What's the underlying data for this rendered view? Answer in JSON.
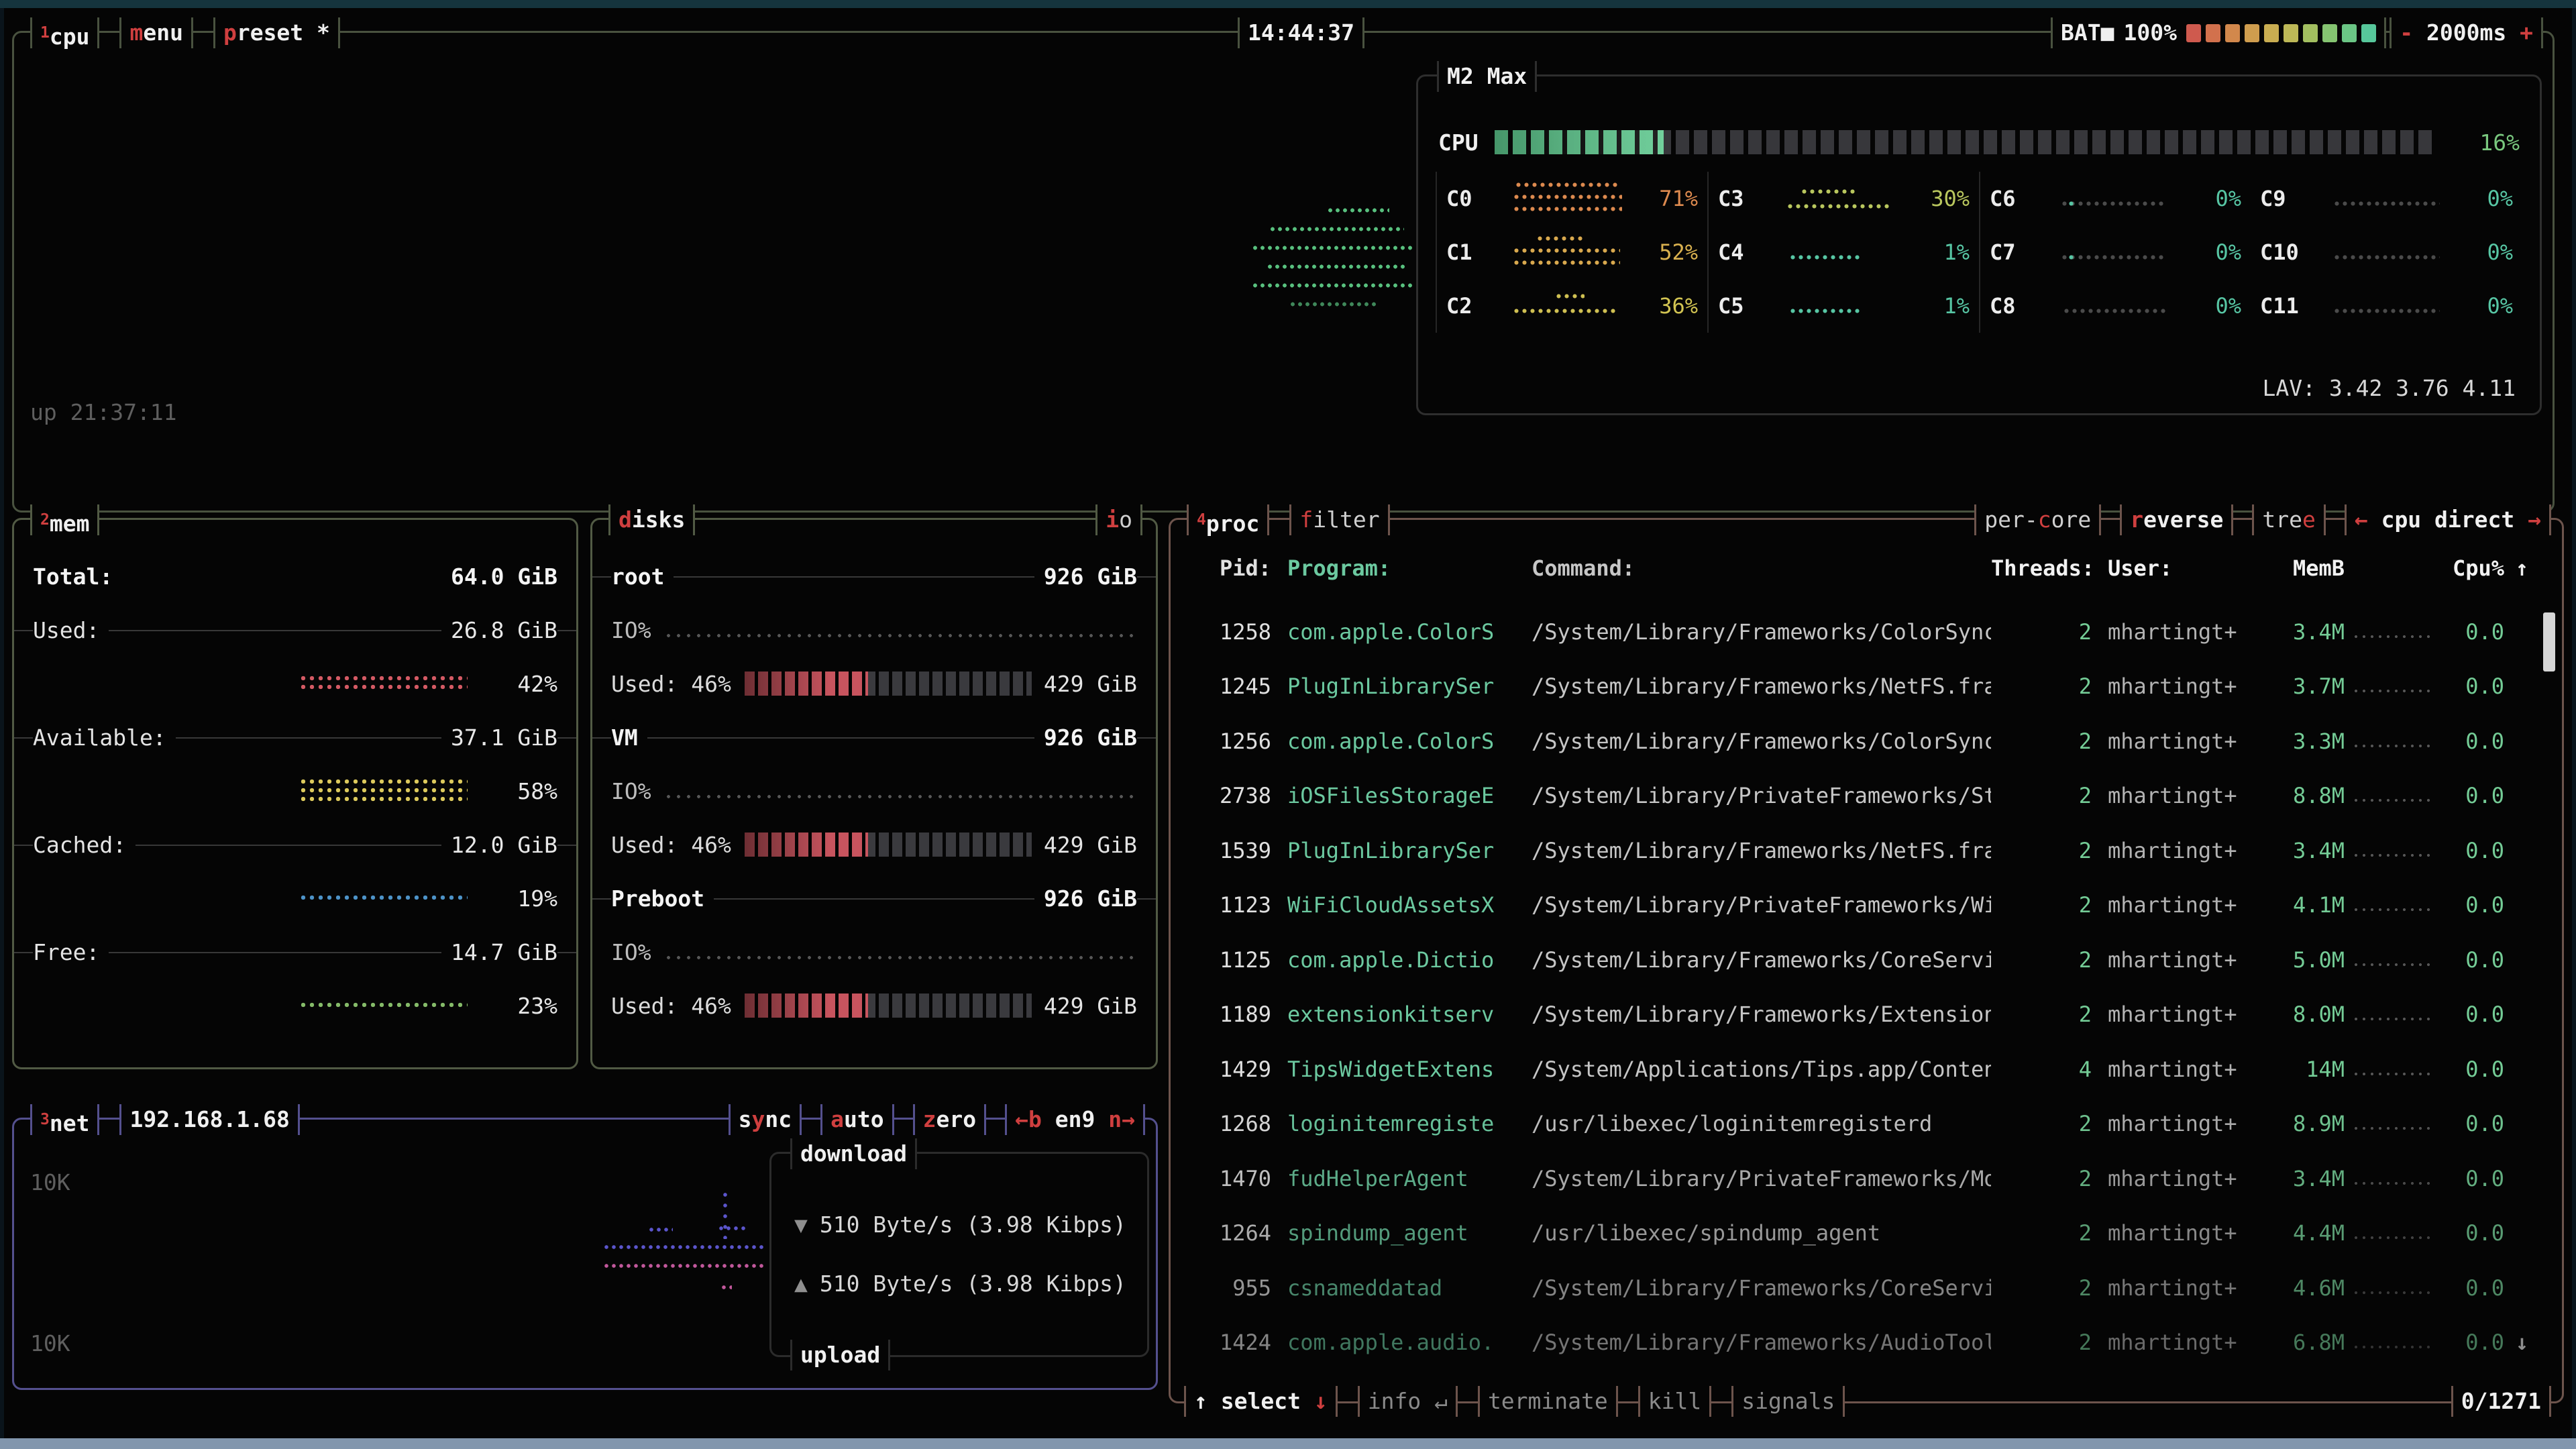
{
  "topbar": {
    "tabs": [
      {
        "sup": "1",
        "label": "cpu"
      },
      {
        "hot": "m",
        "rest": "enu"
      },
      {
        "hot": "p",
        "rest": "reset *"
      }
    ],
    "clock": "14:44:37",
    "battery": {
      "label": "BAT",
      "icon": "■",
      "percent": "100%",
      "blocks": [
        "#cf5a4e",
        "#d2714d",
        "#d2884c",
        "#cf9d4e",
        "#c9ad51",
        "#bdb857",
        "#a3bf60",
        "#85c471",
        "#6bc685",
        "#57c79b"
      ]
    },
    "interval": {
      "minus": "-",
      "value": "2000ms",
      "plus": "+"
    }
  },
  "cpu": {
    "uptime": "up 21:37:11",
    "model": "M2 Max",
    "total_label": "CPU",
    "total_percent": "16%",
    "percent_color": "#79c77e",
    "filled": 9,
    "blocks": 50,
    "graph_color": "#58c07e",
    "lav": "LAV: 3.42 3.76 4.11",
    "cores": [
      {
        "name": "C0",
        "pct": "71%",
        "color": "#dd8a4f",
        "gcolor": "#dd8a4f",
        "graph": "g3"
      },
      {
        "name": "C3",
        "pct": "30%",
        "color": "#b9c75e",
        "gcolor": "#b9c75e",
        "graph": "g2mid"
      },
      {
        "name": "C6",
        "pct": "0%",
        "color": "#57c6a4",
        "gcolor": "#4b4b4b",
        "graph": "gspeck"
      },
      {
        "name": "C9",
        "pct": "0%",
        "color": "#57c6a4",
        "gcolor": "#4b4b4b",
        "graph": "gflat"
      },
      {
        "name": "C1",
        "pct": "52%",
        "color": "#d9b14f",
        "gcolor": "#d9a94e",
        "graph": "g3top"
      },
      {
        "name": "C4",
        "pct": "1%",
        "color": "#57c6a4",
        "gcolor": "#57c6a4",
        "graph": "gsparse"
      },
      {
        "name": "C7",
        "pct": "0%",
        "color": "#57c6a4",
        "gcolor": "#4b4b4b",
        "graph": "gspeck"
      },
      {
        "name": "C10",
        "pct": "0%",
        "color": "#57c6a4",
        "gcolor": "#4b4b4b",
        "graph": "gflat"
      },
      {
        "name": "C2",
        "pct": "36%",
        "color": "#d2c452",
        "gcolor": "#cfc052",
        "graph": "g2sparse"
      },
      {
        "name": "C5",
        "pct": "1%",
        "color": "#57c6a4",
        "gcolor": "#57c6a4",
        "graph": "gsparse"
      },
      {
        "name": "C8",
        "pct": "0%",
        "color": "#57c6a4",
        "gcolor": "#4b4b4b",
        "graph": "gflat"
      },
      {
        "name": "C11",
        "pct": "0%",
        "color": "#57c6a4",
        "gcolor": "#4b4b4b",
        "graph": "gflat"
      }
    ]
  },
  "mem": {
    "sup": "2",
    "title": "mem",
    "total": {
      "label": "Total:",
      "value": "64.0 GiB"
    },
    "rows": [
      {
        "label": "Used:",
        "value": "26.8 GiB",
        "pct": "42%",
        "color": "#d45a64",
        "lines": "l2"
      },
      {
        "label": "Available:",
        "value": "37.1 GiB",
        "pct": "58%",
        "color": "#dcc95c",
        "lines": "l3"
      },
      {
        "label": "Cached:",
        "value": "12.0 GiB",
        "pct": "19%",
        "color": "#4d93c8",
        "lines": "l1"
      },
      {
        "label": "Free:",
        "value": "14.7 GiB",
        "pct": "23%",
        "color": "#85bb69",
        "lines": "l1"
      }
    ]
  },
  "disks": {
    "hot": "d",
    "rest": "isks",
    "io_hot": "i",
    "io_rest": "o",
    "entries": [
      {
        "name": "root",
        "size": "926 GiB",
        "io_label": "IO%",
        "used_label": "Used: 46%",
        "used_value": "429 GiB",
        "fill": 0.43
      },
      {
        "name": "VM",
        "size": "926 GiB",
        "io_label": "IO%",
        "used_label": "Used: 46%",
        "used_value": "429 GiB",
        "fill": 0.43
      },
      {
        "name": "Preboot",
        "size": "926 GiB",
        "io_label": "IO%",
        "used_label": "Used: 46%",
        "used_value": "429 GiB",
        "fill": 0.43
      }
    ]
  },
  "net": {
    "sup": "3",
    "title": "net",
    "ip": "192.168.1.68",
    "sync": {
      "pre": "s",
      "hot": "y",
      "post": "nc"
    },
    "auto": {
      "hot": "a",
      "post": "uto"
    },
    "zero": {
      "hot": "z",
      "post": "ero"
    },
    "iface": {
      "left": "←b",
      "name": "en9",
      "right": "n→"
    },
    "scale_top": "10K",
    "scale_bottom": "10K",
    "download": {
      "label": "download",
      "glyph": "▼",
      "value": "510 Byte/s (3.98 Kibps)"
    },
    "upload": {
      "label": "upload",
      "glyph": "▲",
      "value": "510 Byte/s (3.98 Kibps)"
    },
    "down_color": "#5b55cc",
    "up_color": "#c2589c"
  },
  "proc": {
    "sup": "4",
    "title": "proc",
    "filter": {
      "hot": "f",
      "rest": "ilter"
    },
    "tabs": {
      "percore": {
        "pre": "per-",
        "hot": "c",
        "post": "ore"
      },
      "reverse": {
        "hot": "r",
        "post": "everse"
      },
      "tree": {
        "pre": "tre",
        "hot": "e",
        "post": ""
      },
      "cpudirect": {
        "left": "←",
        "label": " cpu direct ",
        "right": "→"
      }
    },
    "header": {
      "pid": "Pid:",
      "program": "Program:",
      "command": "Command:",
      "threads": "Threads:",
      "user": "User:",
      "mem": "MemB",
      "cpu": "Cpu%",
      "sort": "↑"
    },
    "rows": [
      {
        "pid": "1258",
        "program": "com.apple.ColorS",
        "command": "/System/Library/Frameworks/ColorSync.",
        "threads": "2",
        "user": "mhartingt+",
        "mem": "3.4M",
        "cpu": "0.0",
        "fade": 1,
        "tail": ""
      },
      {
        "pid": "1245",
        "program": "PlugInLibrarySer",
        "command": "/System/Library/Frameworks/NetFS.fram",
        "threads": "2",
        "user": "mhartingt+",
        "mem": "3.7M",
        "cpu": "0.0",
        "fade": 1,
        "tail": ""
      },
      {
        "pid": "1256",
        "program": "com.apple.ColorS",
        "command": "/System/Library/Frameworks/ColorSync.",
        "threads": "2",
        "user": "mhartingt+",
        "mem": "3.3M",
        "cpu": "0.0",
        "fade": 1,
        "tail": ""
      },
      {
        "pid": "2738",
        "program": "iOSFilesStorageE",
        "command": "/System/Library/PrivateFrameworks/Sto",
        "threads": "2",
        "user": "mhartingt+",
        "mem": "8.8M",
        "cpu": "0.0",
        "fade": 1,
        "tail": ""
      },
      {
        "pid": "1539",
        "program": "PlugInLibrarySer",
        "command": "/System/Library/Frameworks/NetFS.fram",
        "threads": "2",
        "user": "mhartingt+",
        "mem": "3.4M",
        "cpu": "0.0",
        "fade": 1,
        "tail": ""
      },
      {
        "pid": "1123",
        "program": "WiFiCloudAssetsX",
        "command": "/System/Library/PrivateFrameworks/WiF",
        "threads": "2",
        "user": "mhartingt+",
        "mem": "4.1M",
        "cpu": "0.0",
        "fade": 1,
        "tail": ""
      },
      {
        "pid": "1125",
        "program": "com.apple.Dictio",
        "command": "/System/Library/Frameworks/CoreServic",
        "threads": "2",
        "user": "mhartingt+",
        "mem": "5.0M",
        "cpu": "0.0",
        "fade": 1,
        "tail": ""
      },
      {
        "pid": "1189",
        "program": "extensionkitserv",
        "command": "/System/Library/Frameworks/ExtensionF",
        "threads": "2",
        "user": "mhartingt+",
        "mem": "8.0M",
        "cpu": "0.0",
        "fade": 1,
        "tail": ""
      },
      {
        "pid": "1429",
        "program": "TipsWidgetExtens",
        "command": "/System/Applications/Tips.app/Content",
        "threads": "4",
        "user": "mhartingt+",
        "mem": "14M",
        "cpu": "0.0",
        "fade": 1,
        "tail": ""
      },
      {
        "pid": "1268",
        "program": "loginitemregiste",
        "command": "/usr/libexec/loginitemregisterd",
        "threads": "2",
        "user": "mhartingt+",
        "mem": "8.9M",
        "cpu": "0.0",
        "fade": 0.95,
        "tail": ""
      },
      {
        "pid": "1470",
        "program": "fudHelperAgent",
        "command": "/System/Library/PrivateFrameworks/Mob",
        "threads": "2",
        "user": "mhartingt+",
        "mem": "3.4M",
        "cpu": "0.0",
        "fade": 0.85,
        "tail": ""
      },
      {
        "pid": "1264",
        "program": "spindump_agent",
        "command": "/usr/libexec/spindump_agent",
        "threads": "2",
        "user": "mhartingt+",
        "mem": "4.4M",
        "cpu": "0.0",
        "fade": 0.76,
        "tail": ""
      },
      {
        "pid": "955",
        "program": "csnameddatad",
        "command": "/System/Library/Frameworks/CoreServic",
        "threads": "2",
        "user": "mhartingt+",
        "mem": "4.6M",
        "cpu": "0.0",
        "fade": 0.66,
        "tail": ""
      },
      {
        "pid": "1424",
        "program": "com.apple.audio.",
        "command": "/System/Library/Frameworks/AudioToolb",
        "threads": "2",
        "user": "mhartingt+",
        "mem": "6.8M",
        "cpu": "0.0",
        "fade": 0.58,
        "tail": "↓"
      }
    ],
    "footer": {
      "up": "↑",
      "select": "select",
      "down": "↓",
      "items": [
        "info ↵",
        "terminate",
        "kill",
        "signals"
      ],
      "count": "0/1271"
    }
  }
}
